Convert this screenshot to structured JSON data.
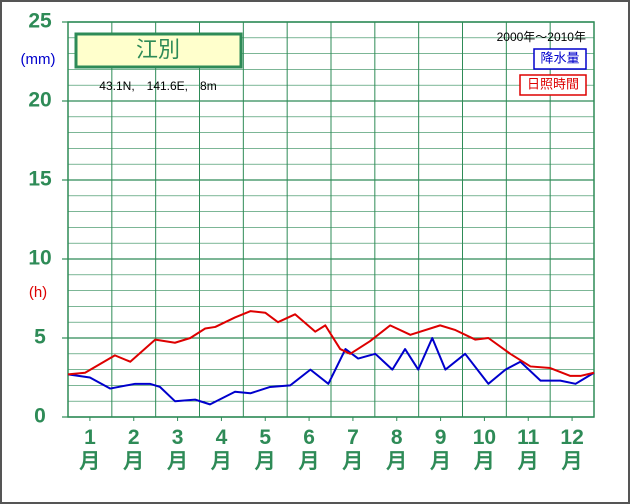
{
  "chart_data": {
    "type": "line",
    "title": "江別",
    "subtitle": "43.1N,　141.6E,　8m",
    "period": "2000年～2010年",
    "y_label": "(mm)",
    "y2_label": "(h)",
    "xlim": [
      0.5,
      12.5
    ],
    "xticks": [
      {
        "value": 1,
        "label": "1月"
      },
      {
        "value": 2,
        "label": "2月"
      },
      {
        "value": 3,
        "label": "3月"
      },
      {
        "value": 4,
        "label": "4月"
      },
      {
        "value": 5,
        "label": "5月"
      },
      {
        "value": 6,
        "label": "6月"
      },
      {
        "value": 7,
        "label": "7月"
      },
      {
        "value": 8,
        "label": "8月"
      },
      {
        "value": 9,
        "label": "9月"
      },
      {
        "value": 10,
        "label": "10月"
      },
      {
        "value": 11,
        "label": "11月"
      },
      {
        "value": 12,
        "label": "12月"
      }
    ],
    "ylim": [
      0,
      25
    ],
    "yticks": [
      0,
      5,
      10,
      15,
      20,
      25
    ],
    "grid": true,
    "minor_grid": true,
    "series": [
      {
        "name": "降水量",
        "color": "#0000cc",
        "x": [
          0.5,
          1.0,
          1.46,
          2.03,
          2.37,
          2.6,
          2.94,
          3.4,
          3.74,
          4.31,
          4.66,
          5.11,
          5.57,
          6.03,
          6.44,
          6.83,
          7.12,
          7.51,
          7.9,
          8.19,
          8.49,
          8.81,
          9.11,
          9.56,
          10.09,
          10.48,
          10.82,
          11.28,
          11.73,
          12.08,
          12.5
        ],
        "values": [
          2.7,
          2.5,
          1.8,
          2.1,
          2.1,
          1.9,
          1.0,
          1.1,
          0.8,
          1.6,
          1.5,
          1.9,
          2.0,
          3.0,
          2.1,
          4.3,
          3.7,
          4.0,
          3.0,
          4.3,
          3.0,
          5.0,
          3.0,
          4.0,
          2.1,
          3.0,
          3.5,
          2.3,
          2.3,
          2.1,
          2.8
        ]
      },
      {
        "name": "日照時間",
        "color": "#dd0000",
        "x": [
          0.5,
          0.89,
          1.57,
          1.92,
          2.49,
          2.94,
          3.29,
          3.63,
          3.86,
          4.31,
          4.66,
          5.0,
          5.29,
          5.68,
          6.14,
          6.37,
          6.71,
          6.94,
          7.39,
          7.85,
          8.31,
          8.99,
          9.34,
          9.79,
          10.09,
          10.59,
          11.05,
          11.5,
          11.96,
          12.19,
          12.5
        ],
        "values": [
          2.7,
          2.8,
          3.9,
          3.5,
          4.9,
          4.7,
          5.0,
          5.6,
          5.7,
          6.3,
          6.7,
          6.6,
          6.0,
          6.5,
          5.4,
          5.8,
          4.3,
          4.0,
          4.8,
          5.8,
          5.2,
          5.8,
          5.5,
          4.9,
          5.0,
          4.0,
          3.2,
          3.1,
          2.6,
          2.6,
          2.8
        ]
      }
    ]
  }
}
